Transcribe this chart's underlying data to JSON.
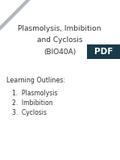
{
  "title_line1": "Plasmolysis, Imbibition",
  "title_line2": "and Cyclosis",
  "title_line3": "(BIO40A)",
  "section_label": "Learning Outlines:",
  "items": [
    "1.  Plasmolysis",
    "2.  Imbibition",
    "3.  Cyclosis"
  ],
  "bg_color": "#ffffff",
  "text_color": "#333333",
  "title_fontsize": 6.5,
  "body_fontsize": 5.5,
  "label_fontsize": 5.8,
  "triangle_color": "#b0b8c0",
  "triangle_inner": "#ffffff",
  "pdf_bg": "#1a3a4a",
  "pdf_text": "#ffffff"
}
